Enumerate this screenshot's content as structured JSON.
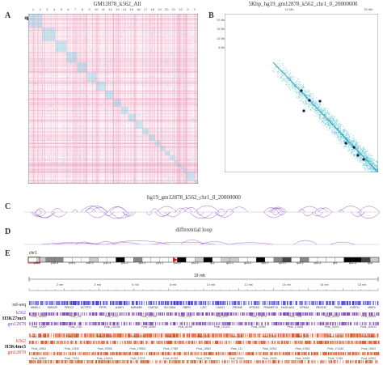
{
  "panels": {
    "A": {
      "letter": "A",
      "title": "GM12878_k562_All",
      "top_ticks": [
        "1",
        "2",
        "3",
        "4",
        "5",
        "6",
        "7",
        "8",
        "9",
        "10",
        "11",
        "12",
        "13",
        "14",
        "15",
        "16",
        "17",
        "18",
        "19",
        "20",
        "21",
        "22",
        "X",
        "Y"
      ],
      "left_ticks": [
        "1",
        "2",
        "3",
        "4",
        "5",
        "6",
        "7",
        "8",
        "9",
        "10",
        "11",
        "12",
        "13",
        "14",
        "15",
        "16",
        "17",
        "18",
        "19",
        "20",
        "21",
        "22",
        "X",
        "Y"
      ]
    },
    "B": {
      "letter": "B",
      "title": "5Kbp_hg19_gm12878_k562_chr1_0_20000000",
      "top_ticks": [
        "10 Mb",
        "20 Mb"
      ],
      "left_ticks": [
        "5 Mb",
        "10 Mb",
        "15 Mb",
        "20 Mb"
      ]
    },
    "C": {
      "letter": "C",
      "title": "hg19_gm12878_k562_chr1_0_20000000"
    },
    "D": {
      "letter": "D",
      "title": "differential loop"
    },
    "E": {
      "letter": "E",
      "chrom": "chr1",
      "bands": [
        "p36.2",
        "p34.3",
        "p34.1",
        "p32.3",
        "p31.3",
        "p31.1",
        "p22.1",
        "p21.1",
        "p13.2",
        "p11.2",
        "q12",
        "q21.1",
        "q23.3",
        "q25.1",
        "q31.1",
        "q32.1",
        "q32.3",
        "q41",
        "q42.3",
        "q44"
      ],
      "scale_label": "19 mb",
      "ruler": [
        "2 mb",
        "4 mb",
        "6 mb",
        "8 mb",
        "10 mb",
        "12 mb",
        "14 mb",
        "16 mb",
        "18 mb"
      ],
      "genes": [
        "MMEL1",
        "MIR429",
        "PRKCZ",
        "ACTRT2",
        "PRTB",
        "AJAP1",
        "MIR4689",
        "CA6TA1",
        "SLC45A1",
        "NBPD",
        "LZIC",
        "CASZ1",
        "PRDM8",
        "VPS13D",
        "PRAMEF10",
        "KAZN-AS1",
        "EPHA2",
        "FBXO42",
        "PADI6",
        "IGSF21",
        "MBP4"
      ],
      "peaks_row1": [
        "Peak_169460",
        "Peak_146",
        "Peak_97027",
        "Peak_222766",
        "Peak_2020",
        "Peak_9931",
        "Peak_176076",
        "Peak_7938",
        "Peak_26056",
        "Peak_88055"
      ],
      "peaks_row2": [
        "Peak_32059",
        "Peak_2160",
        "Peak_192086",
        "Peak_58360",
        "Peak_66359",
        "Peak_191300",
        "Peak_92980",
        "Peak_176658",
        "Peak_26960",
        "Peak_169413"
      ],
      "peaks_row3": [
        "Peak_227213",
        "Peak_135",
        "Peak_177928",
        "Peak_222761",
        "Peak_64",
        "Peak_3150",
        "Peak_228",
        "Peak_73937",
        "Peak_2473",
        "Peak_94756",
        "Peak_45963"
      ],
      "peaks_row4": [
        "Peak_43963",
        "Peak_12596",
        "Peak_93968",
        "Peak_178963",
        "Peak_27989",
        "Peak_18963",
        "Peak_131",
        "Peak_33963",
        "Peak_41963",
        "Peak_174046",
        "Peak_19463"
      ],
      "peaks_row5": [
        "Peak_80993",
        "Peak_77693",
        "Peak_126926",
        "Peak_37678",
        "Peak_81993",
        "Peak_37993",
        "Peak_57663",
        "Peak_19093",
        "Peak_44963",
        "Peak_71963",
        "Peak_60993"
      ]
    }
  },
  "tracks": [
    {
      "label": "ref-seq",
      "color": "#333333"
    },
    {
      "label": "k562",
      "color": "#7b3fb8"
    },
    {
      "label": "H3K27me3",
      "color": "#222222"
    },
    {
      "label": "gm12878",
      "color": "#7b3fb8"
    },
    {
      "label": "k562",
      "color": "#d04020"
    },
    {
      "label": "H3K4me3",
      "color": "#222222"
    },
    {
      "label": "gm12878",
      "color": "#d04020"
    }
  ],
  "colors": {
    "pink": "#e8739a",
    "cyan": "#66d6e8",
    "purple": "#7b3fb8",
    "orange": "#e0552a",
    "blue": "#3a3ad0"
  }
}
